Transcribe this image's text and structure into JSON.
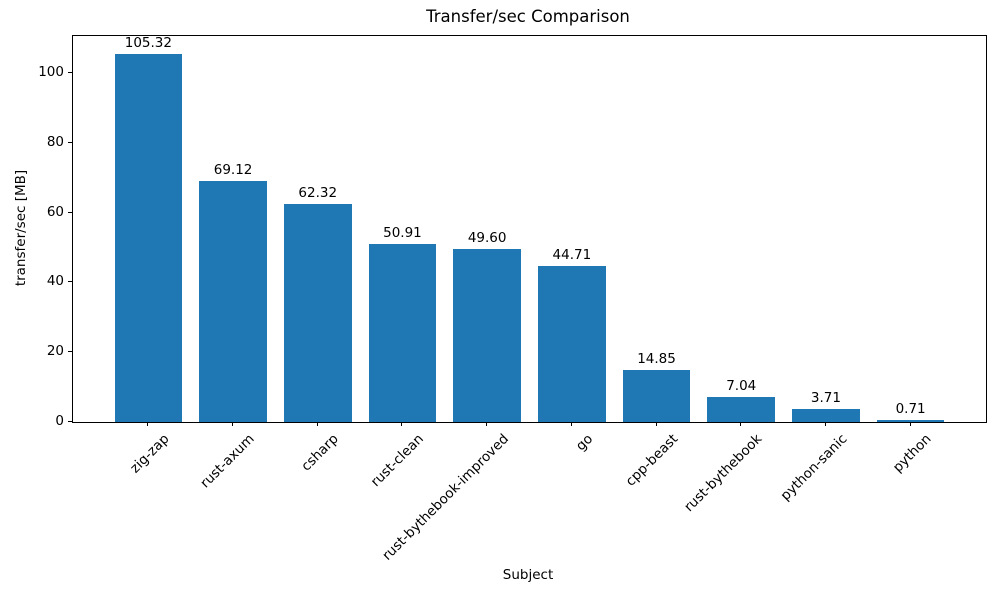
{
  "chart_data": {
    "type": "bar",
    "title": "Transfer/sec Comparison",
    "xlabel": "Subject",
    "ylabel": "transfer/sec [MB]",
    "categories": [
      "zig-zap",
      "rust-axum",
      "csharp",
      "rust-clean",
      "rust-bythebook-improved",
      "go",
      "cpp-beast",
      "rust-bythebook",
      "python-sanic",
      "python"
    ],
    "values": [
      105.32,
      69.12,
      62.32,
      50.91,
      49.6,
      44.71,
      14.85,
      7.04,
      3.71,
      0.71
    ],
    "value_labels": [
      "105.32",
      "69.12",
      "62.32",
      "50.91",
      "49.60",
      "44.71",
      "14.85",
      "7.04",
      "3.71",
      "0.71"
    ],
    "yticks": [
      0,
      20,
      40,
      60,
      80,
      100
    ],
    "ylim": [
      0,
      110.6
    ],
    "bar_color": "#1f77b4",
    "grid": false,
    "legend_position": "none",
    "xtick_rotation_deg": 45
  }
}
